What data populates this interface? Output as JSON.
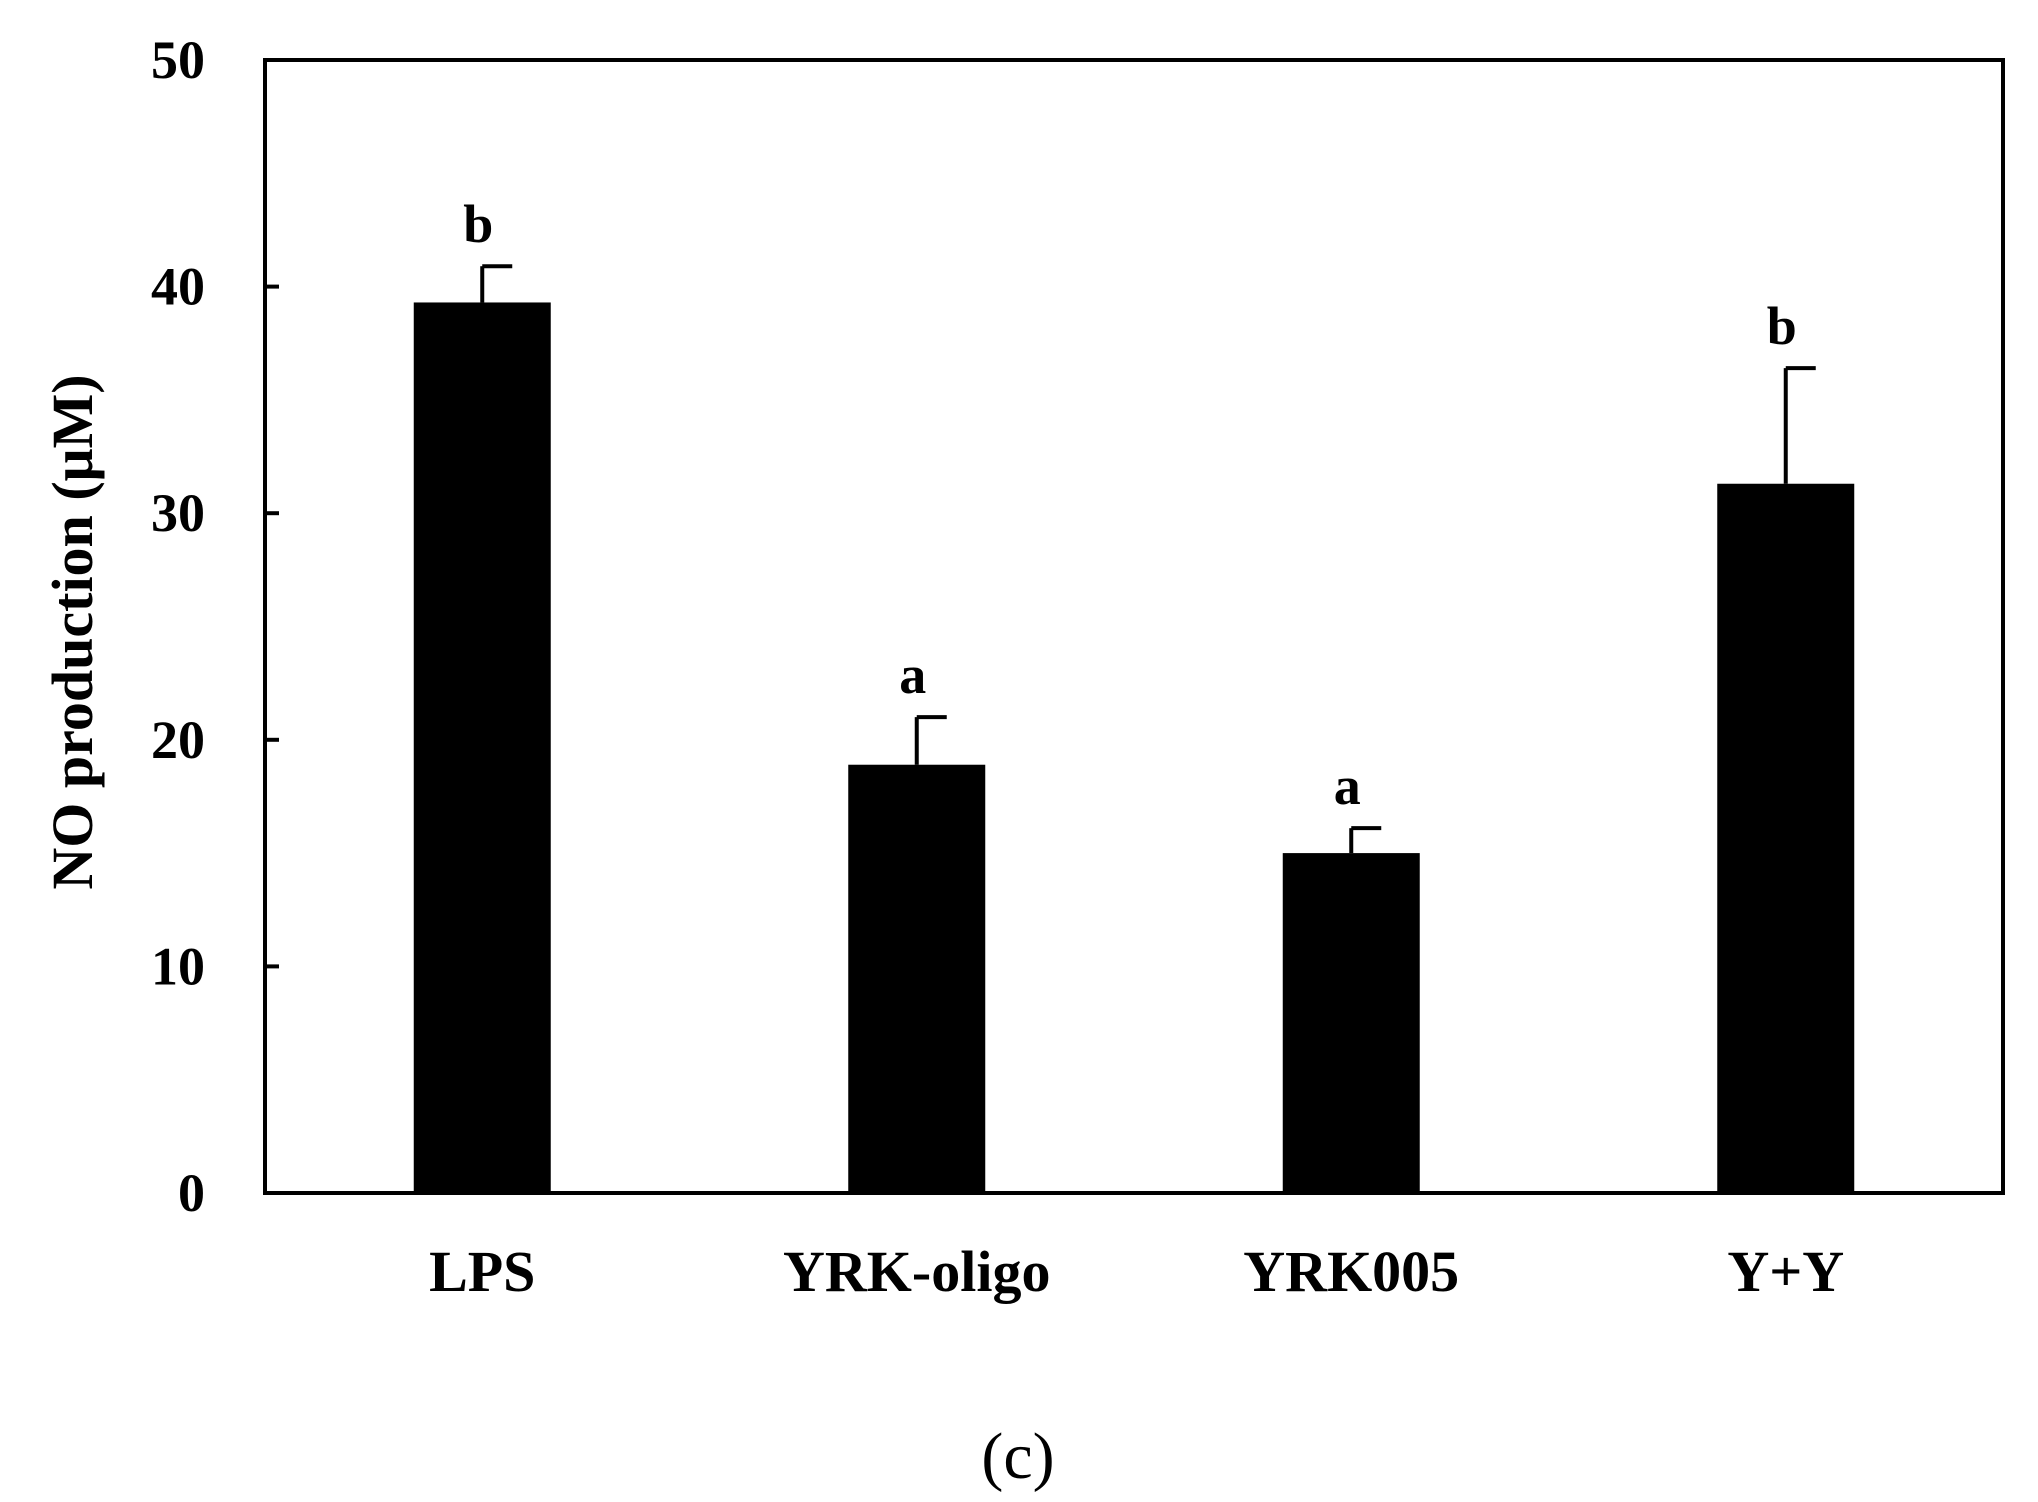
{
  "chart_data": {
    "type": "bar",
    "categories": [
      "LPS",
      "YRK-oligo",
      "YRK005",
      "Y+Y"
    ],
    "values": [
      39.3,
      18.9,
      15.0,
      31.3
    ],
    "error_upper": [
      40.9,
      21.0,
      16.1,
      36.4
    ],
    "significance_letters": [
      "b",
      "a",
      "a",
      "b"
    ],
    "ylabel": "NO production (μM)",
    "xlabel": "",
    "ylim": [
      0,
      50
    ],
    "yticks": [
      0,
      10,
      20,
      30,
      40,
      50
    ],
    "grid": false,
    "bar_color": "#000000"
  },
  "panel_label": "(c)"
}
